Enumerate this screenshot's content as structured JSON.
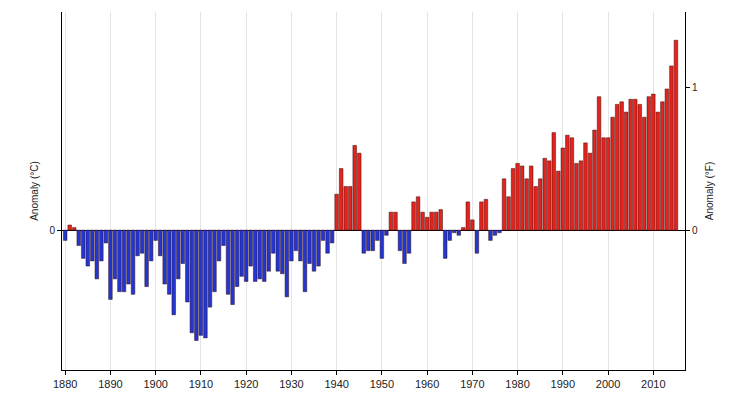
{
  "chart_data": {
    "type": "bar",
    "x_label": null,
    "y_label": "Anomaly (°C)",
    "y2_label": "Anomaly (°F)",
    "x": [
      1880,
      1881,
      1882,
      1883,
      1884,
      1885,
      1886,
      1887,
      1888,
      1889,
      1890,
      1891,
      1892,
      1893,
      1894,
      1895,
      1896,
      1897,
      1898,
      1899,
      1900,
      1901,
      1902,
      1903,
      1904,
      1905,
      1906,
      1907,
      1908,
      1909,
      1910,
      1911,
      1912,
      1913,
      1914,
      1915,
      1916,
      1917,
      1918,
      1919,
      1920,
      1921,
      1922,
      1923,
      1924,
      1925,
      1926,
      1927,
      1928,
      1929,
      1930,
      1931,
      1932,
      1933,
      1934,
      1935,
      1936,
      1937,
      1938,
      1939,
      1940,
      1941,
      1942,
      1943,
      1944,
      1945,
      1946,
      1947,
      1948,
      1949,
      1950,
      1951,
      1952,
      1953,
      1954,
      1955,
      1956,
      1957,
      1958,
      1959,
      1960,
      1961,
      1962,
      1963,
      1964,
      1965,
      1966,
      1967,
      1968,
      1969,
      1970,
      1971,
      1972,
      1973,
      1974,
      1975,
      1976,
      1977,
      1978,
      1979,
      1980,
      1981,
      1982,
      1983,
      1984,
      1985,
      1986,
      1987,
      1988,
      1989,
      1990,
      1991,
      1992,
      1993,
      1994,
      1995,
      1996,
      1997,
      1998,
      1999,
      2000,
      2001,
      2002,
      2003,
      2004,
      2005,
      2006,
      2007,
      2008,
      2009,
      2010,
      2011,
      2012,
      2013,
      2014,
      2015
    ],
    "values": [
      -0.04,
      0.02,
      0.01,
      -0.06,
      -0.11,
      -0.14,
      -0.12,
      -0.19,
      -0.12,
      -0.05,
      -0.27,
      -0.19,
      -0.24,
      -0.24,
      -0.21,
      -0.25,
      -0.1,
      -0.09,
      -0.22,
      -0.12,
      -0.04,
      -0.1,
      -0.21,
      -0.25,
      -0.33,
      -0.19,
      -0.13,
      -0.28,
      -0.4,
      -0.43,
      -0.41,
      -0.42,
      -0.3,
      -0.24,
      -0.12,
      -0.06,
      -0.25,
      -0.29,
      -0.22,
      -0.18,
      -0.2,
      -0.14,
      -0.2,
      -0.19,
      -0.2,
      -0.16,
      -0.09,
      -0.16,
      -0.17,
      -0.26,
      -0.12,
      -0.08,
      -0.12,
      -0.24,
      -0.13,
      -0.16,
      -0.14,
      -0.04,
      -0.09,
      -0.05,
      0.14,
      0.24,
      0.17,
      0.17,
      0.33,
      0.3,
      -0.09,
      -0.08,
      -0.08,
      -0.04,
      -0.11,
      -0.02,
      0.07,
      0.07,
      -0.08,
      -0.13,
      -0.09,
      0.11,
      0.13,
      0.07,
      0.05,
      0.07,
      0.07,
      0.08,
      -0.11,
      -0.04,
      -0.01,
      -0.02,
      0.01,
      0.11,
      0.04,
      -0.09,
      0.11,
      0.12,
      -0.04,
      -0.02,
      -0.01,
      0.2,
      0.13,
      0.24,
      0.26,
      0.25,
      0.2,
      0.25,
      0.17,
      0.2,
      0.28,
      0.27,
      0.38,
      0.23,
      0.32,
      0.37,
      0.36,
      0.26,
      0.27,
      0.34,
      0.3,
      0.39,
      0.52,
      0.36,
      0.36,
      0.44,
      0.49,
      0.5,
      0.46,
      0.51,
      0.51,
      0.49,
      0.44,
      0.52,
      0.53,
      0.46,
      0.5,
      0.55,
      0.64,
      0.74
    ],
    "colors": [
      "#2236d4",
      "#e3231c",
      "#e3231c",
      "#2236d4",
      "#2236d4",
      "#2236d4",
      "#2236d4",
      "#2236d4",
      "#2236d4",
      "#2236d4",
      "#2236d4",
      "#2236d4",
      "#2236d4",
      "#2236d4",
      "#2236d4",
      "#2236d4",
      "#2236d4",
      "#2236d4",
      "#2236d4",
      "#2236d4",
      "#2236d4",
      "#2236d4",
      "#2236d4",
      "#2236d4",
      "#2236d4",
      "#2236d4",
      "#2236d4",
      "#2236d4",
      "#2236d4",
      "#2236d4",
      "#2236d4",
      "#2236d4",
      "#2236d4",
      "#2236d4",
      "#2236d4",
      "#2236d4",
      "#2236d4",
      "#2236d4",
      "#2236d4",
      "#2236d4",
      "#2236d4",
      "#2236d4",
      "#2236d4",
      "#2236d4",
      "#2236d4",
      "#2236d4",
      "#2236d4",
      "#2236d4",
      "#2236d4",
      "#2236d4",
      "#2236d4",
      "#2236d4",
      "#2236d4",
      "#2236d4",
      "#2236d4",
      "#2236d4",
      "#2236d4",
      "#2236d4",
      "#2236d4",
      "#2236d4",
      "#e3231c",
      "#e3231c",
      "#e3231c",
      "#e3231c",
      "#e3231c",
      "#e3231c",
      "#2236d4",
      "#2236d4",
      "#2236d4",
      "#2236d4",
      "#2236d4",
      "#2236d4",
      "#e3231c",
      "#e3231c",
      "#2236d4",
      "#2236d4",
      "#2236d4",
      "#e3231c",
      "#e3231c",
      "#e3231c",
      "#e3231c",
      "#e3231c",
      "#e3231c",
      "#e3231c",
      "#2236d4",
      "#2236d4",
      "#2236d4",
      "#2236d4",
      "#e3231c",
      "#e3231c",
      "#e3231c",
      "#2236d4",
      "#e3231c",
      "#e3231c",
      "#2236d4",
      "#2236d4",
      "#2236d4",
      "#e3231c",
      "#e3231c",
      "#e3231c",
      "#e3231c",
      "#e3231c",
      "#e3231c",
      "#e3231c",
      "#e3231c",
      "#e3231c",
      "#e3231c",
      "#e3231c",
      "#e3231c",
      "#e3231c",
      "#e3231c",
      "#e3231c",
      "#e3231c",
      "#e3231c",
      "#e3231c",
      "#e3231c",
      "#e3231c",
      "#e3231c",
      "#e3231c",
      "#e3231c",
      "#e3231c",
      "#e3231c",
      "#e3231c",
      "#e3231c",
      "#e3231c",
      "#e3231c",
      "#e3231c",
      "#e3231c",
      "#e3231c",
      "#e3231c",
      "#e3231c",
      "#e3231c",
      "#e3231c",
      "#e3231c",
      "#e3231c",
      "#e3231c"
    ],
    "xlim": [
      1879.3,
      2017
    ],
    "xticks": [
      1880,
      1890,
      1900,
      1910,
      1920,
      1930,
      1940,
      1950,
      1960,
      1970,
      1980,
      1990,
      2000,
      2010
    ],
    "ylim": [
      -0.545,
      0.85
    ],
    "yticks": [
      0
    ],
    "y2lim": [
      -0.981,
      1.53
    ],
    "y2ticks": [
      0,
      1
    ],
    "grid": true
  }
}
